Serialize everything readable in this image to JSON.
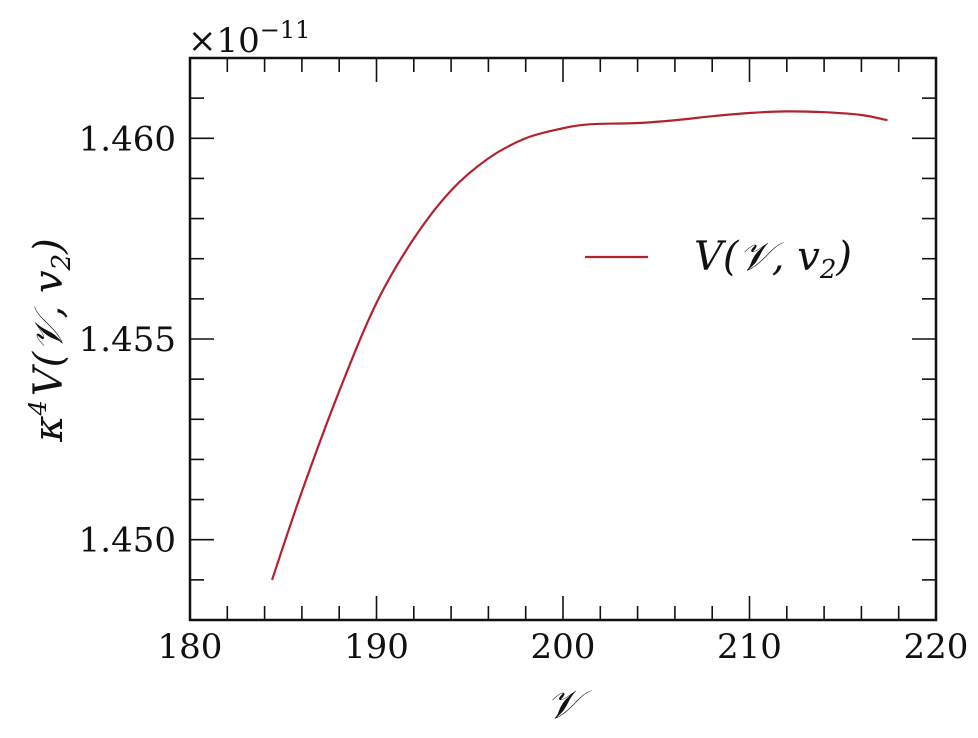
{
  "chart_data": {
    "type": "line",
    "title": "",
    "xlabel": "𝒱",
    "ylabel": {
      "kappa": "κ",
      "exponent": "4",
      "main": "V(𝒱, v",
      "subscript": "2",
      "close": ")"
    },
    "offset_text": {
      "prefix": "×10",
      "exponent": "−11"
    },
    "xlim": [
      180,
      220
    ],
    "ylim": [
      1.448,
      1.462
    ],
    "x_ticks": [
      180,
      190,
      200,
      210,
      220
    ],
    "x_tick_labels": [
      "180",
      "190",
      "200",
      "210",
      "220"
    ],
    "y_ticks": [
      1.45,
      1.455,
      1.46
    ],
    "y_tick_labels": [
      "1.450",
      "1.455",
      "1.460"
    ],
    "x_minor_step": 2,
    "y_minor_step": 0.001,
    "grid": false,
    "legend_position": "right",
    "series": [
      {
        "name": {
          "main": "V(𝒱, v",
          "subscript": "2",
          "close": ")"
        },
        "color": "#b2222f",
        "x": [
          184.4,
          186,
          188,
          190,
          192,
          194,
          196,
          198,
          200,
          201,
          202,
          204,
          206,
          208,
          210,
          212,
          214,
          216,
          217.4
        ],
        "y": [
          1.449,
          1.4512,
          1.4537,
          1.4559,
          1.4575,
          1.4587,
          1.4595,
          1.46,
          1.46025,
          1.46033,
          1.46036,
          1.46038,
          1.46045,
          1.46055,
          1.46063,
          1.46067,
          1.46065,
          1.46058,
          1.46045
        ]
      }
    ]
  }
}
